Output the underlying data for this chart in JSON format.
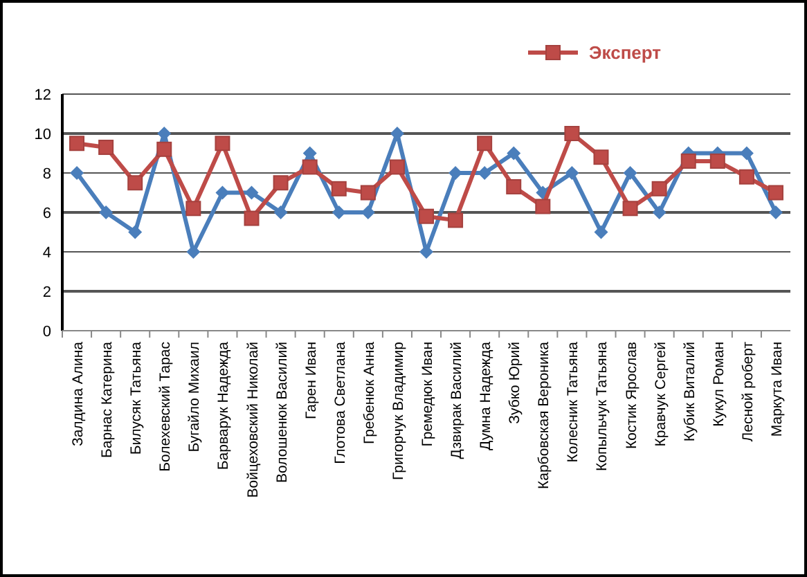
{
  "chart_data": {
    "type": "line",
    "categories": [
      "Залдина Алина",
      "Барнас Катерина",
      "Билусяк Татьяна",
      "Болехевский Тарас",
      "Бугайло Михаил",
      "Барварук Надежда",
      "Войцеховский Николай",
      "Волошенюк Василий",
      "Гарен Иван",
      "Глотова Светлана",
      "Гребенюк Анна",
      "Григорчук Владимир",
      "Гремедюк Иван",
      "Дзвирак Василий",
      "Думна Надежда",
      "Зубко Юрий",
      "Карбовская Вероника",
      "Колесник Татьяна",
      "Копыльчук Татьяна",
      "Костик Ярослав",
      "Кравчук Сергей",
      "Кубик Виталий",
      "Кукул Роман",
      "Лесной роберт",
      "Маркута Иван"
    ],
    "series": [
      {
        "color": "#4a7ebb",
        "marker": "diamond",
        "values": [
          8,
          6,
          5,
          10,
          4,
          7,
          7,
          6,
          9,
          6,
          6,
          10,
          4,
          8,
          8,
          9,
          7,
          8,
          5,
          8,
          6,
          9,
          9,
          9,
          6
        ]
      },
      {
        "name": "Эксперт",
        "color": "#be4b48",
        "marker": "square",
        "values": [
          9.5,
          9.3,
          7.5,
          9.2,
          6.2,
          9.5,
          5.7,
          7.5,
          8.3,
          7.2,
          7,
          8.3,
          5.8,
          5.6,
          9.5,
          7.3,
          6.3,
          10,
          8.8,
          6.2,
          7.2,
          8.6,
          8.6,
          7.8,
          7
        ]
      }
    ],
    "ylim": [
      0,
      12
    ],
    "yticks": [
      0,
      2,
      4,
      6,
      8,
      10,
      12
    ],
    "grid": "y",
    "legend": "top"
  }
}
